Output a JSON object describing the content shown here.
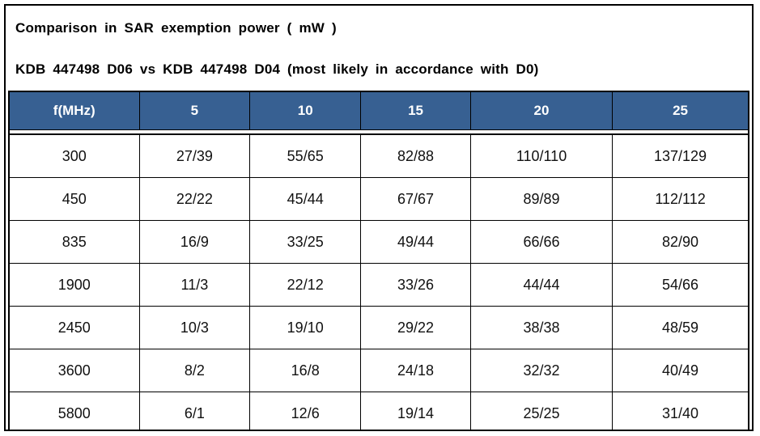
{
  "header": {
    "title_line1": "Comparison in SAR exemption power ( mW )",
    "title_line2": "KDB 447498 D06 vs KDB 447498 D04 (most likely in accordance with D0)"
  },
  "colors": {
    "header_bg": "#376092",
    "header_text": "#ffffff",
    "table_border": "#000000",
    "body_text": "#111111",
    "page_bg": "#ffffff"
  },
  "chart_data": {
    "type": "table",
    "columns": [
      "f(MHz)",
      "5",
      "10",
      "15",
      "20",
      "25"
    ],
    "rows": [
      [
        "300",
        "27/39",
        "55/65",
        "82/88",
        "110/110",
        "137/129"
      ],
      [
        "450",
        "22/22",
        "45/44",
        "67/67",
        "89/89",
        "112/112"
      ],
      [
        "835",
        "16/9",
        "33/25",
        "49/44",
        "66/66",
        "82/90"
      ],
      [
        "1900",
        "11/3",
        "22/12",
        "33/26",
        "44/44",
        "54/66"
      ],
      [
        "2450",
        "10/3",
        "19/10",
        "29/22",
        "38/38",
        "48/59"
      ],
      [
        "3600",
        "8/2",
        "16/8",
        "24/18",
        "32/32",
        "40/49"
      ],
      [
        "5800",
        "6/1",
        "12/6",
        "19/14",
        "25/25",
        "31/40"
      ]
    ]
  }
}
